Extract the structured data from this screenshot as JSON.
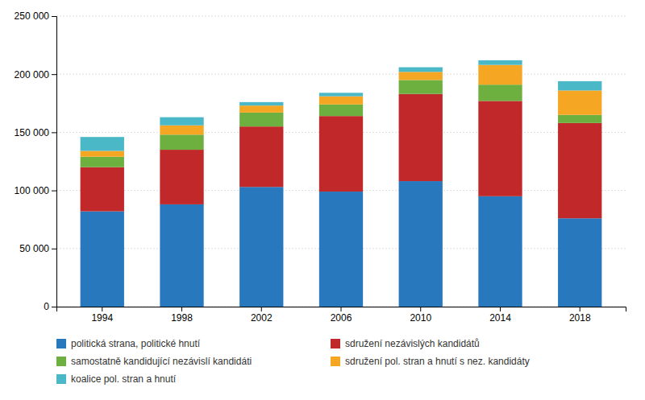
{
  "chart_data": {
    "type": "bar",
    "stacked": true,
    "categories": [
      "1994",
      "1998",
      "2002",
      "2006",
      "2010",
      "2014",
      "2018"
    ],
    "series": [
      {
        "name": "politická strana, politické hnutí",
        "color": "#2878BE",
        "values": [
          82000,
          88000,
          103000,
          99000,
          108000,
          95000,
          76000
        ]
      },
      {
        "name": "sdružení nezávislých kandidátů",
        "color": "#C1282A",
        "values": [
          38000,
          47000,
          52000,
          65000,
          75000,
          82000,
          82000
        ]
      },
      {
        "name": "samostatně kandidující nezávislí kandidáti",
        "color": "#6EB040",
        "values": [
          9000,
          13000,
          12000,
          10000,
          12000,
          14000,
          7000
        ]
      },
      {
        "name": "sdružení pol. stran a hnutí s nez. kandidáty",
        "color": "#F5A623",
        "values": [
          5000,
          8000,
          6000,
          7000,
          7000,
          17000,
          21000
        ]
      },
      {
        "name": "koalice pol. stran a hnutí",
        "color": "#4BB8C8",
        "values": [
          12000,
          7000,
          3000,
          3000,
          4000,
          4000,
          8000
        ]
      }
    ],
    "ylim": [
      0,
      250000
    ],
    "yticks": [
      0,
      {
        "value": 50000,
        "label": "50 000"
      },
      {
        "value": 100000,
        "label": "100 000"
      },
      {
        "value": 150000,
        "label": "150 000"
      },
      {
        "value": 200000,
        "label": "200 000"
      },
      {
        "value": 250000,
        "label": "250 000"
      }
    ],
    "grid": true,
    "legend": "bottom"
  }
}
